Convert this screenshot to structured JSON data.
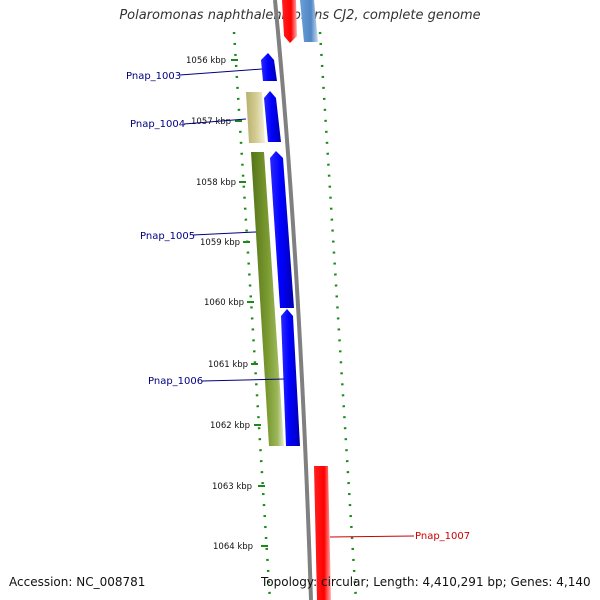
{
  "title": "Polaromonas naphthalenivorans CJ2, complete genome",
  "accession": "Accession: NC_008781",
  "topology": "Topology: circular; Length: 4,410,291 bp; Genes: 4,140",
  "ticks": [
    "1056 kbp",
    "1057 kbp",
    "1058 kbp",
    "1059 kbp",
    "1060 kbp",
    "1061 kbp",
    "1062 kbp",
    "1063 kbp",
    "1064 kbp"
  ],
  "genes": [
    {
      "label": "Pnap_1003",
      "color": "#0000ff"
    },
    {
      "label": "Pnap_1004",
      "color": "#c8c080"
    },
    {
      "label": "Pnap_1005",
      "color": "#6b8e23"
    },
    {
      "label": "Pnap_1006",
      "color": "#0000ff"
    },
    {
      "label": "Pnap_1007",
      "color": "#ff0000"
    }
  ],
  "colors": {
    "forward_gene": "#0000ff",
    "reverse_gene_dark": "#6b8e23",
    "reverse_gene_light": "#c8c080",
    "other_strand_gene": "#ff0000",
    "backbone": "#808080",
    "gc_dots": "#1a8a1a"
  }
}
